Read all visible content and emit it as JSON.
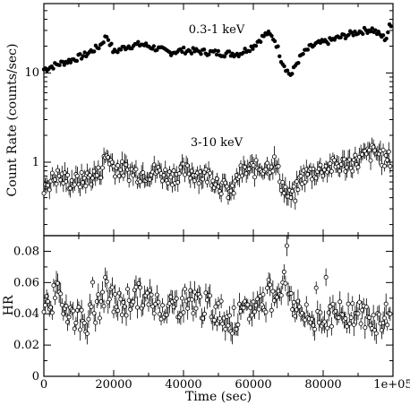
{
  "chart_data": [
    {
      "type": "scatter",
      "panel": "top",
      "ylabel": "Count Rate (counts/sec)",
      "xlim": [
        0,
        100000
      ],
      "ylim": [
        0.15,
        60
      ],
      "yscale": "log",
      "yticks": [
        1,
        10
      ],
      "ytick_labels": [
        "1",
        "10"
      ],
      "grid": false,
      "series": [
        {
          "name": "0.3-1 keV",
          "marker": "filled-circle",
          "color": "#000000",
          "x": [
            0,
            4000,
            8000,
            12000,
            16000,
            18000,
            20000,
            24000,
            28000,
            32000,
            36000,
            40000,
            44000,
            48000,
            52000,
            56000,
            60000,
            62000,
            64000,
            66000,
            68000,
            69000,
            70000,
            71000,
            72000,
            74000,
            76000,
            78000,
            82000,
            86000,
            90000,
            94000,
            96000,
            98000,
            99000
          ],
          "y": [
            11,
            12.5,
            14,
            16,
            20,
            26,
            17,
            20,
            21,
            19,
            17,
            18,
            17.5,
            17,
            16.5,
            16.5,
            20,
            24,
            28,
            24,
            14,
            12,
            10,
            9.5,
            12,
            16,
            19,
            21,
            23,
            26,
            29,
            31,
            27,
            24,
            33
          ]
        },
        {
          "name": "3-10 keV",
          "marker": "open-circle-errorbar",
          "color": "#000000",
          "x": [
            0,
            4000,
            8000,
            12000,
            16000,
            18000,
            20000,
            24000,
            28000,
            32000,
            36000,
            40000,
            44000,
            48000,
            52000,
            54000,
            56000,
            60000,
            64000,
            66000,
            68000,
            70000,
            72000,
            74000,
            78000,
            82000,
            86000,
            90000,
            94000,
            96000,
            98000,
            99000
          ],
          "y": [
            0.55,
            0.7,
            0.6,
            0.65,
            0.75,
            1.2,
            0.9,
            0.8,
            0.75,
            0.8,
            0.7,
            0.8,
            0.75,
            0.7,
            0.5,
            0.45,
            0.75,
            0.85,
            0.9,
            1.0,
            0.6,
            0.4,
            0.45,
            0.7,
            0.8,
            0.9,
            0.95,
            1.05,
            1.3,
            1.25,
            1.05,
            1.1
          ]
        }
      ],
      "annotations": [
        "0.3-1 keV",
        "3-10 keV"
      ]
    },
    {
      "type": "scatter",
      "panel": "bottom",
      "xlabel": "Time (sec)",
      "ylabel": "HR",
      "xlim": [
        0,
        100000
      ],
      "ylim": [
        0,
        0.09
      ],
      "xticks": [
        0,
        20000,
        40000,
        60000,
        80000,
        100000
      ],
      "xtick_labels": [
        "0",
        "20000",
        "40000",
        "60000",
        "80000",
        "1e+05"
      ],
      "yticks": [
        0,
        0.02,
        0.04,
        0.06,
        0.08
      ],
      "ytick_labels": [
        "0",
        "0.02",
        "0.04",
        "0.06",
        "0.08"
      ],
      "grid": false,
      "series": [
        {
          "marker": "open-circle-errorbar",
          "color": "#000000",
          "x": [
            0,
            4000,
            8000,
            12000,
            16000,
            17500,
            19000,
            22000,
            26000,
            30000,
            34000,
            38000,
            42000,
            46000,
            50000,
            54000,
            58000,
            62000,
            66000,
            69000,
            70000,
            72000,
            76000,
            80000,
            84000,
            88000,
            92000,
            96000,
            99000
          ],
          "y": [
            0.045,
            0.052,
            0.04,
            0.035,
            0.045,
            0.055,
            0.05,
            0.045,
            0.052,
            0.048,
            0.045,
            0.045,
            0.05,
            0.045,
            0.042,
            0.035,
            0.04,
            0.048,
            0.052,
            0.062,
            0.055,
            0.045,
            0.035,
            0.04,
            0.038,
            0.042,
            0.038,
            0.035,
            0.04
          ]
        }
      ]
    }
  ]
}
